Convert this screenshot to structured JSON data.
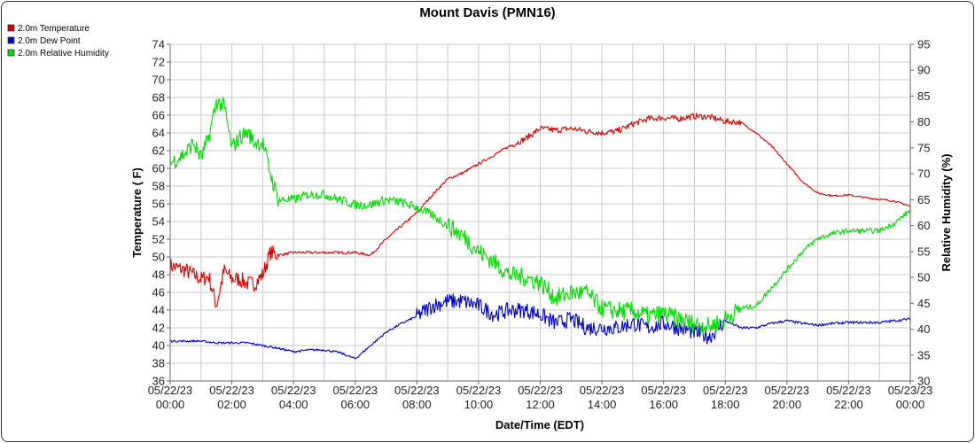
{
  "chart_data": {
    "type": "line",
    "title": "Mount Davis (PMN16)",
    "xlabel": "Date/Time (EDT)",
    "ylabel_left": "Temperature ( F)",
    "ylabel_right": "Relative Humidity (%)",
    "x_ticks": [
      {
        "date": "05/22/23",
        "time": "00:00"
      },
      {
        "date": "05/22/23",
        "time": "02:00"
      },
      {
        "date": "05/22/23",
        "time": "04:00"
      },
      {
        "date": "05/22/23",
        "time": "06:00"
      },
      {
        "date": "05/22/23",
        "time": "08:00"
      },
      {
        "date": "05/22/23",
        "time": "10:00"
      },
      {
        "date": "05/22/23",
        "time": "12:00"
      },
      {
        "date": "05/22/23",
        "time": "14:00"
      },
      {
        "date": "05/22/23",
        "time": "16:00"
      },
      {
        "date": "05/22/23",
        "time": "18:00"
      },
      {
        "date": "05/22/23",
        "time": "20:00"
      },
      {
        "date": "05/22/23",
        "time": "22:00"
      },
      {
        "date": "05/23/23",
        "time": "00:00"
      }
    ],
    "xlim_hours": [
      0,
      24
    ],
    "ylim_left": [
      36,
      74
    ],
    "yticks_left": [
      36,
      38,
      40,
      42,
      44,
      46,
      48,
      50,
      52,
      54,
      56,
      58,
      60,
      62,
      64,
      66,
      68,
      70,
      72,
      74
    ],
    "ylim_right": [
      30,
      95
    ],
    "yticks_right": [
      30,
      35,
      40,
      45,
      50,
      55,
      60,
      65,
      70,
      75,
      80,
      85,
      90,
      95
    ],
    "grid": true,
    "legend_position": "top-left, outside plot",
    "series": [
      {
        "name": "2.0m Temperature",
        "color": "#dd0000",
        "axis": "left",
        "x": [
          0,
          0.5,
          1,
          1.25,
          1.5,
          1.75,
          2,
          2.25,
          2.5,
          2.75,
          3,
          3.25,
          3.5,
          4,
          4.5,
          5,
          5.5,
          6,
          6.5,
          7,
          7.5,
          8,
          8.5,
          9,
          9.5,
          10,
          10.5,
          11,
          11.5,
          12,
          12.5,
          13,
          13.5,
          14,
          14.5,
          15,
          15.5,
          16,
          16.5,
          17,
          17.5,
          18,
          18.5,
          19,
          19.5,
          20,
          20.5,
          21,
          21.5,
          22,
          22.5,
          23,
          23.5,
          24
        ],
        "y": [
          49,
          48.5,
          47.5,
          47.8,
          44.5,
          48.5,
          47.5,
          47.5,
          47,
          47,
          48,
          50.5,
          50.2,
          50.5,
          50.5,
          50.5,
          50.5,
          50.5,
          50.2,
          52,
          53.5,
          55,
          57,
          58.8,
          59.5,
          60.5,
          61.5,
          62.5,
          63.3,
          64.5,
          64.3,
          64.5,
          64.2,
          64,
          64.2,
          65,
          65.6,
          65.7,
          65.6,
          65.9,
          65.8,
          65.3,
          65.2,
          64,
          62.5,
          60.5,
          58.5,
          57.2,
          56.9,
          57,
          56.7,
          56.5,
          56.3,
          55.7
        ]
      },
      {
        "name": "2.0m Dew Point",
        "color": "#0000cc",
        "axis": "left",
        "x": [
          0,
          0.5,
          1,
          1.5,
          2,
          2.5,
          3,
          3.5,
          4,
          4.5,
          5,
          5.5,
          6,
          6.5,
          7,
          7.5,
          8,
          8.5,
          9,
          9.5,
          10,
          10.5,
          11,
          11.5,
          12,
          12.5,
          13,
          13.5,
          14,
          14.5,
          15,
          15.5,
          16,
          16.5,
          17,
          17.5,
          18,
          18.5,
          19,
          19.5,
          20,
          20.5,
          21,
          21.5,
          22,
          22.5,
          23,
          23.5,
          24
        ],
        "y": [
          40.5,
          40.5,
          40.5,
          40.3,
          40.3,
          40.3,
          40,
          39.7,
          39.3,
          39.5,
          39.5,
          39.2,
          38.5,
          40,
          41.5,
          42.5,
          43.3,
          44.5,
          45,
          45,
          44.5,
          43.5,
          44,
          44,
          43.5,
          42.5,
          43,
          42,
          42,
          42,
          42.5,
          42,
          42.5,
          42,
          41.5,
          41,
          42.8,
          42,
          42,
          42.5,
          42.8,
          42.5,
          42.3,
          42.5,
          42.6,
          42.6,
          42.6,
          42.8,
          43
        ]
      },
      {
        "name": "2.0m Relative Humidity",
        "color": "#00dd00",
        "axis": "right",
        "x": [
          0,
          0.25,
          0.5,
          0.75,
          1,
          1.25,
          1.5,
          1.75,
          2,
          2.25,
          2.5,
          2.75,
          3,
          3.25,
          3.5,
          4,
          4.5,
          5,
          5.5,
          6,
          6.5,
          7,
          7.5,
          8,
          8.5,
          9,
          9.5,
          10,
          10.5,
          11,
          11.5,
          12,
          12.5,
          13,
          13.5,
          14,
          14.5,
          15,
          15.5,
          16,
          16.5,
          17,
          17.5,
          18,
          18.5,
          19,
          19.5,
          20,
          20.5,
          21,
          21.5,
          22,
          22.5,
          23,
          23.5,
          24
        ],
        "y": [
          72,
          73,
          74,
          76,
          73,
          77,
          84,
          83,
          75,
          77,
          78,
          76,
          76,
          70,
          65,
          65,
          66,
          66,
          65,
          64,
          64,
          65,
          64.5,
          63.5,
          62,
          60,
          58,
          55,
          53,
          50.5,
          50,
          49,
          46,
          47,
          47,
          44,
          43.5,
          43.5,
          42.5,
          43,
          42,
          41,
          40.5,
          42,
          44,
          44.5,
          48,
          51.5,
          55,
          57.5,
          58.5,
          59,
          59,
          59,
          60.5,
          63
        ]
      }
    ]
  }
}
